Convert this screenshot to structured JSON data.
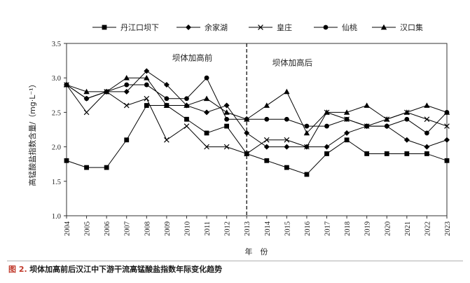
{
  "caption": {
    "number": "图 2.",
    "title": "坝体加高前后汉江中下游干流高锰酸盐指数年际变化趋势"
  },
  "chart_data": {
    "type": "line",
    "xlabel": "年　份",
    "ylabel": "高锰酸盐指数含量/（mg·L⁻¹）",
    "ylim": [
      1.0,
      3.5
    ],
    "yticks": [
      "1.0",
      "1.5",
      "2.0",
      "2.5",
      "3.0",
      "3.5"
    ],
    "grid": false,
    "legend_position": "top",
    "categories": [
      "2004",
      "2005",
      "2006",
      "2007",
      "2008",
      "2009",
      "2010",
      "2011",
      "2012",
      "2013",
      "2014",
      "2015",
      "2016",
      "2017",
      "2018",
      "2019",
      "2020",
      "2021",
      "2022",
      "2023"
    ],
    "divider": {
      "at": "2013",
      "style": "dashed"
    },
    "annotations": [
      {
        "text": "坝体加高前",
        "x": "2010",
        "y": 3.25
      },
      {
        "text": "坝体加高后",
        "x": "2015",
        "y": 3.18
      }
    ],
    "series": [
      {
        "name": "丹江口坝下",
        "marker": "square",
        "values": [
          1.8,
          1.7,
          1.7,
          2.1,
          2.6,
          2.6,
          2.4,
          2.2,
          2.3,
          1.9,
          1.8,
          1.7,
          1.6,
          1.9,
          2.1,
          1.9,
          1.9,
          1.9,
          1.9,
          1.8
        ]
      },
      {
        "name": "余家湖",
        "marker": "diamond",
        "values": [
          2.9,
          2.7,
          2.8,
          2.8,
          3.1,
          2.9,
          2.6,
          2.5,
          2.6,
          2.2,
          2.0,
          2.0,
          2.0,
          2.0,
          2.2,
          2.3,
          2.3,
          2.1,
          2.0,
          2.1
        ]
      },
      {
        "name": "皇庄",
        "marker": "cross",
        "values": [
          2.9,
          2.5,
          2.8,
          2.6,
          2.7,
          2.1,
          2.3,
          2.0,
          2.0,
          1.9,
          2.1,
          2.1,
          2.0,
          2.5,
          2.4,
          2.3,
          2.4,
          2.5,
          2.4,
          2.3
        ]
      },
      {
        "name": "仙桃",
        "marker": "circle",
        "values": [
          2.9,
          2.7,
          2.8,
          2.9,
          2.9,
          2.7,
          2.7,
          3.0,
          2.4,
          2.4,
          2.4,
          2.4,
          2.3,
          2.3,
          2.4,
          2.3,
          2.3,
          2.4,
          2.2,
          2.5
        ]
      },
      {
        "name": "汉口集",
        "marker": "triangle",
        "values": [
          2.9,
          2.8,
          2.8,
          3.0,
          3.0,
          2.6,
          2.6,
          2.7,
          2.5,
          2.4,
          2.6,
          2.8,
          2.2,
          2.5,
          2.5,
          2.6,
          2.4,
          2.5,
          2.6,
          2.5
        ]
      }
    ]
  }
}
